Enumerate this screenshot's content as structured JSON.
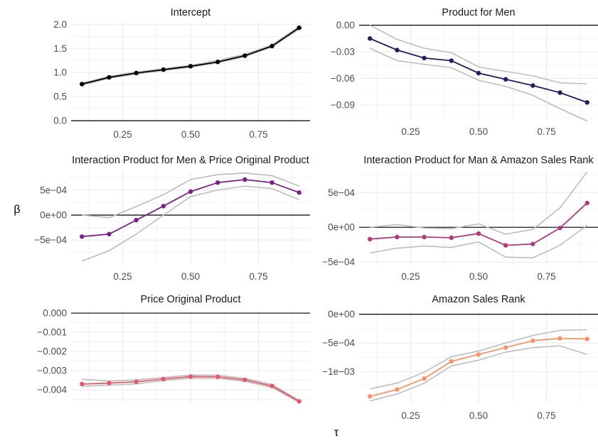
{
  "figure": {
    "ylabel": "β",
    "xlabel": "τ",
    "x_ticks": [
      "0.25",
      "0.50",
      "0.75"
    ]
  },
  "colors": {
    "ci_line": "#bdbdbd",
    "grid": "#ebebeb",
    "zero_line": "#000000"
  },
  "chart_data": [
    {
      "type": "line",
      "title": "Intercept",
      "x": [
        0.1,
        0.2,
        0.3,
        0.4,
        0.5,
        0.6,
        0.7,
        0.8,
        0.9
      ],
      "xlim": [
        0.06,
        0.94
      ],
      "ylim": [
        -0.03,
        2.02
      ],
      "y_ticks": [
        0,
        0.5,
        1.0,
        1.5,
        2.0
      ],
      "y_tick_labels": [
        "0.0",
        "0.5",
        "1.0",
        "1.5",
        "2.0"
      ],
      "color": "#000000",
      "series": [
        {
          "role": "estimate",
          "values": [
            0.76,
            0.9,
            0.99,
            1.06,
            1.13,
            1.22,
            1.35,
            1.55,
            1.93
          ]
        },
        {
          "role": "upper",
          "values": [
            0.78,
            0.92,
            1.01,
            1.08,
            1.15,
            1.25,
            1.38,
            1.57,
            1.96
          ]
        },
        {
          "role": "lower",
          "values": [
            0.74,
            0.88,
            0.97,
            1.04,
            1.11,
            1.2,
            1.33,
            1.53,
            1.9
          ]
        }
      ]
    },
    {
      "type": "line",
      "title": "Product for Men",
      "x": [
        0.1,
        0.2,
        0.3,
        0.4,
        0.5,
        0.6,
        0.7,
        0.8,
        0.9
      ],
      "xlim": [
        0.06,
        0.94
      ],
      "ylim": [
        -0.106,
        0.002
      ],
      "y_ticks": [
        0,
        -0.03,
        -0.06,
        -0.09
      ],
      "y_tick_labels": [
        "0.00",
        "−0.03",
        "−0.06",
        "−0.09"
      ],
      "color": "#2a1a5e",
      "series": [
        {
          "role": "estimate",
          "values": [
            -0.015,
            -0.028,
            -0.037,
            -0.04,
            -0.054,
            -0.061,
            -0.068,
            -0.076,
            -0.087
          ]
        },
        {
          "role": "upper",
          "values": [
            0.0,
            -0.016,
            -0.026,
            -0.031,
            -0.047,
            -0.052,
            -0.057,
            -0.065,
            -0.066
          ]
        },
        {
          "role": "lower",
          "values": [
            -0.026,
            -0.04,
            -0.044,
            -0.048,
            -0.062,
            -0.069,
            -0.079,
            -0.094,
            -0.108
          ]
        }
      ]
    },
    {
      "type": "line",
      "title": "Interaction Product for Men & Price Original Product",
      "x": [
        0.1,
        0.2,
        0.3,
        0.4,
        0.5,
        0.6,
        0.7,
        0.8,
        0.9
      ],
      "xlim": [
        0.06,
        0.94
      ],
      "ylim": [
        -0.00098,
        0.00088
      ],
      "y_ticks": [
        0.0005,
        0,
        -0.0005
      ],
      "y_tick_labels": [
        "5e−04",
        "0e+00",
        "−5e−04"
      ],
      "color": "#7b2382",
      "series": [
        {
          "role": "estimate",
          "values": [
            -0.00043,
            -0.00038,
            -0.0001,
            0.00018,
            0.00047,
            0.00065,
            0.00071,
            0.00065,
            0.00045
          ]
        },
        {
          "role": "upper",
          "values": [
            0.0,
            -5e-05,
            0.00017,
            0.00041,
            0.00071,
            0.00081,
            0.00084,
            0.00079,
            0.00058
          ]
        },
        {
          "role": "lower",
          "values": [
            -0.00092,
            -0.00071,
            -0.00038,
            0.0,
            0.00037,
            0.0005,
            0.00058,
            0.00053,
            0.00031
          ]
        }
      ]
    },
    {
      "type": "line",
      "title": "Interaction Product for Man & Amazon Sales Rank",
      "x": [
        0.1,
        0.2,
        0.3,
        0.4,
        0.5,
        0.6,
        0.7,
        0.8,
        0.9
      ],
      "xlim": [
        0.06,
        0.94
      ],
      "ylim": [
        -0.00053,
        0.00081
      ],
      "y_ticks": [
        0.0005,
        0,
        -0.0005
      ],
      "y_tick_labels": [
        "5e−04",
        "0e+00",
        "−5e−04"
      ],
      "color": "#b23a7a",
      "series": [
        {
          "role": "estimate",
          "values": [
            -0.00017,
            -0.00014,
            -0.00014,
            -0.00015,
            -9e-05,
            -0.00026,
            -0.00024,
            -1e-05,
            0.00035
          ]
        },
        {
          "role": "upper",
          "values": [
            0.0,
            4e-05,
            -1e-05,
            -2e-05,
            5e-05,
            -0.0001,
            -3e-05,
            0.00028,
            0.0008
          ]
        },
        {
          "role": "lower",
          "values": [
            -0.00037,
            -0.0003,
            -0.00027,
            -0.00029,
            -0.00021,
            -0.00043,
            -0.00044,
            -0.00026,
            3e-05
          ]
        }
      ]
    },
    {
      "type": "line",
      "title": "Price Original Product",
      "x": [
        0.1,
        0.2,
        0.3,
        0.4,
        0.5,
        0.6,
        0.7,
        0.8,
        0.9
      ],
      "xlim": [
        0.06,
        0.94
      ],
      "ylim": [
        -0.0047,
        0.00015
      ],
      "y_ticks": [
        0,
        -0.001,
        -0.002,
        -0.003,
        -0.004
      ],
      "y_tick_labels": [
        "0.000",
        "−0.001",
        "−0.002",
        "−0.003",
        "−0.004"
      ],
      "color": "#e05a6a",
      "series": [
        {
          "role": "estimate",
          "values": [
            -0.0037,
            -0.00365,
            -0.00358,
            -0.00344,
            -0.00331,
            -0.00332,
            -0.00348,
            -0.0038,
            -0.0046
          ]
        },
        {
          "role": "upper",
          "values": [
            -0.00345,
            -0.00354,
            -0.00348,
            -0.00336,
            -0.00323,
            -0.00324,
            -0.0034,
            -0.00372,
            -0.00455
          ]
        },
        {
          "role": "lower",
          "values": [
            -0.00382,
            -0.00376,
            -0.00369,
            -0.00352,
            -0.00339,
            -0.0034,
            -0.00356,
            -0.00388,
            -0.00465
          ]
        }
      ]
    },
    {
      "type": "line",
      "title": "Amazon Sales Rank",
      "x": [
        0.1,
        0.2,
        0.3,
        0.4,
        0.5,
        0.6,
        0.7,
        0.8,
        0.9
      ],
      "xlim": [
        0.06,
        0.94
      ],
      "ylim": [
        -0.00155,
        7e-05
      ],
      "y_ticks": [
        0,
        -0.0005,
        -0.001
      ],
      "y_tick_labels": [
        "0e+00",
        "−5e−04",
        "−1e−03"
      ],
      "color": "#f4956a",
      "series": [
        {
          "role": "estimate",
          "values": [
            -0.00143,
            -0.00131,
            -0.00112,
            -0.00082,
            -0.0007,
            -0.00058,
            -0.00046,
            -0.00042,
            -0.00043
          ]
        },
        {
          "role": "upper",
          "values": [
            -0.0013,
            -0.0012,
            -0.00101,
            -0.00074,
            -0.00064,
            -0.0005,
            -0.00037,
            -0.00028,
            -0.00027
          ]
        },
        {
          "role": "lower",
          "values": [
            -0.00151,
            -0.00139,
            -0.0012,
            -0.0009,
            -0.0008,
            -0.00066,
            -0.00058,
            -0.00055,
            -0.0007
          ]
        }
      ]
    }
  ]
}
